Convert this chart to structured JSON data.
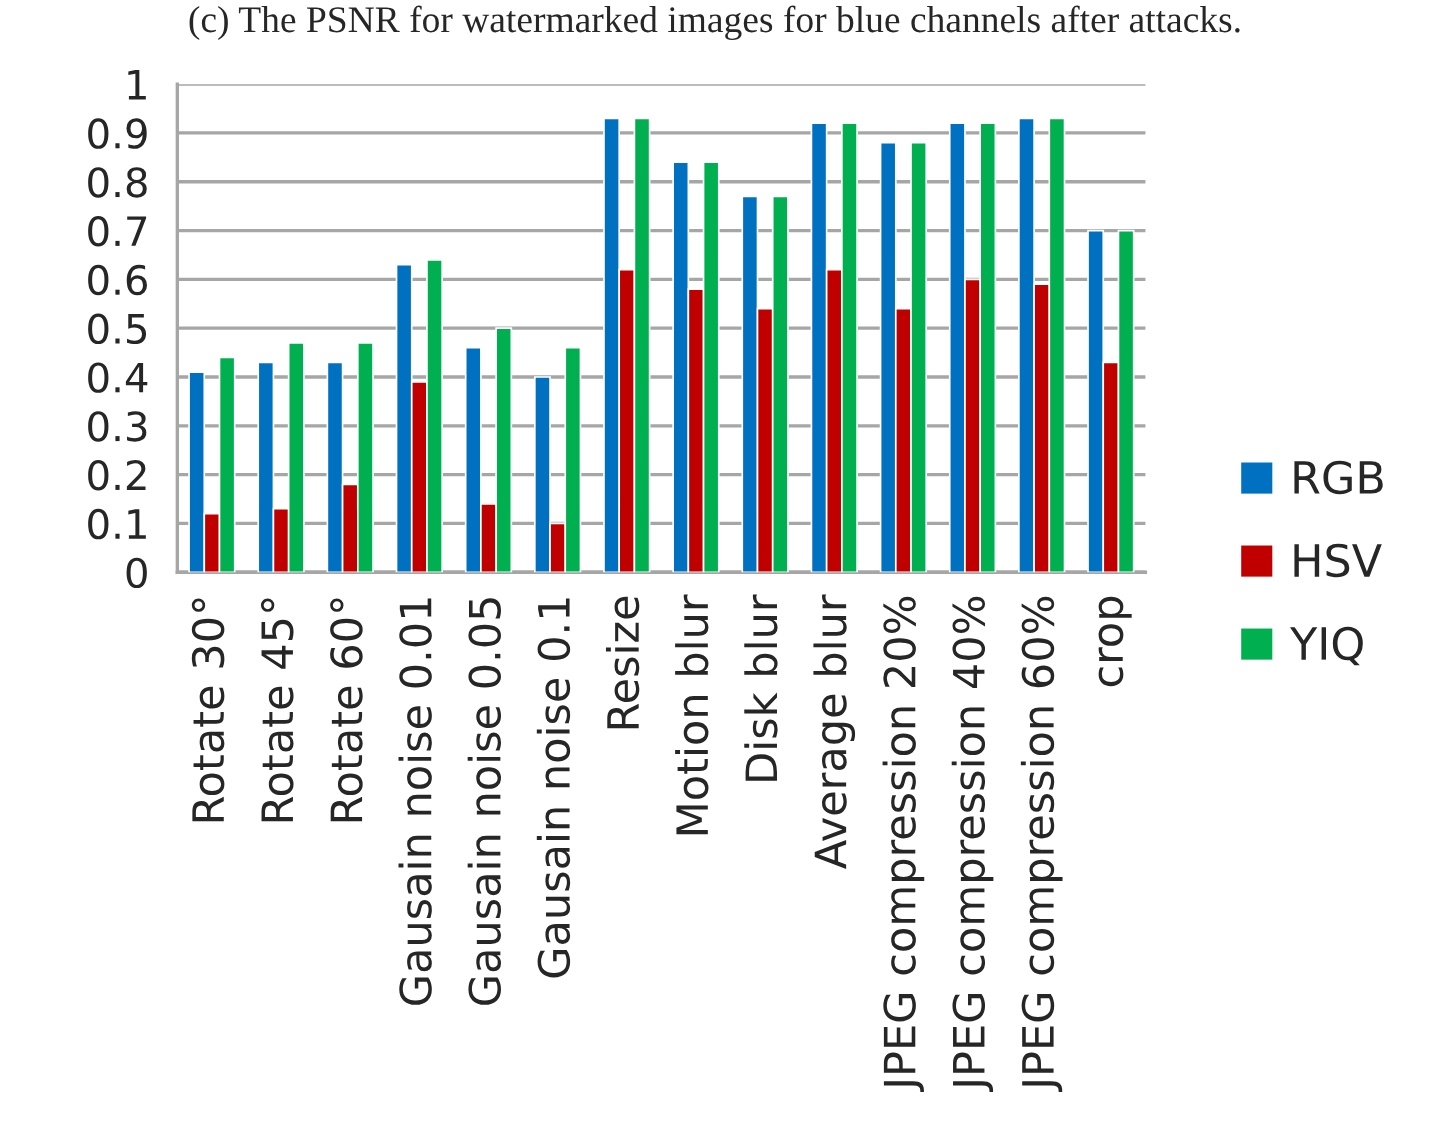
{
  "chart_data": {
    "type": "bar",
    "title": "(c) The PSNR for watermarked images for blue channels after attacks.",
    "categories": [
      "Rotate 30°",
      "Rotate 45°",
      "Rotate 60°",
      "Gausain noise 0.01",
      "Gausain noise 0.05",
      "Gausain noise 0.1",
      "Resize",
      "Motion blur",
      "Disk blur",
      "Average blur",
      "JPEG compression 20%",
      "JPEG compression 40%",
      "JPEG compression 60%",
      "crop"
    ],
    "series": [
      {
        "name": "RGB",
        "color": "#0070c0",
        "values": [
          0.41,
          0.43,
          0.43,
          0.63,
          0.46,
          0.4,
          0.93,
          0.84,
          0.77,
          0.92,
          0.88,
          0.92,
          0.93,
          0.7
        ]
      },
      {
        "name": "HSV",
        "color": "#c00000",
        "values": [
          0.12,
          0.13,
          0.18,
          0.39,
          0.14,
          0.1,
          0.62,
          0.58,
          0.54,
          0.62,
          0.54,
          0.6,
          0.59,
          0.43
        ]
      },
      {
        "name": "YIQ",
        "color": "#00b050",
        "values": [
          0.44,
          0.47,
          0.47,
          0.64,
          0.5,
          0.46,
          0.93,
          0.84,
          0.77,
          0.92,
          0.88,
          0.92,
          0.93,
          0.7
        ]
      }
    ],
    "ylim": [
      0,
      1
    ],
    "yticks": [
      0,
      0.1,
      0.2,
      0.3,
      0.4,
      0.5,
      0.6,
      0.7,
      0.8,
      0.9,
      1
    ],
    "grid": "y",
    "legend": "right"
  }
}
